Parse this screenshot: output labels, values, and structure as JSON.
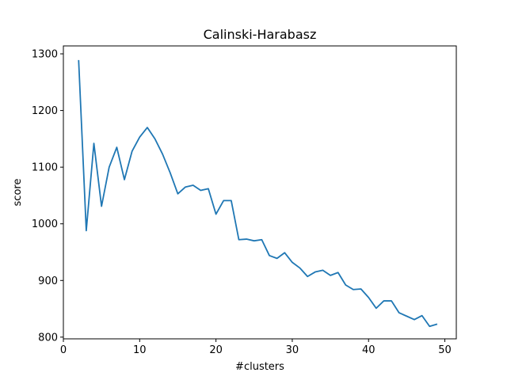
{
  "chart_data": {
    "type": "line",
    "title": "Calinski-Harabasz",
    "xlabel": "#clusters",
    "ylabel": "score",
    "xlim": [
      0,
      51.5
    ],
    "ylim": [
      797,
      1314
    ],
    "xticks": [
      0,
      10,
      20,
      30,
      40,
      50
    ],
    "yticks": [
      800,
      900,
      1000,
      1100,
      1200,
      1300
    ],
    "grid": false,
    "color": "#1f77b4",
    "series": [
      {
        "x": [
          2,
          3,
          4,
          5,
          6,
          7,
          8,
          9,
          10,
          11,
          12,
          13,
          14,
          15,
          16,
          17,
          18,
          19,
          20,
          21,
          22,
          23,
          24,
          25,
          26,
          27,
          28,
          29,
          30,
          31,
          32,
          33,
          34,
          35,
          36,
          37,
          38,
          39,
          40,
          41,
          42,
          43,
          44,
          45,
          46,
          47,
          48,
          49
        ],
        "values": [
          1289,
          988,
          1142,
          1031,
          1100,
          1135,
          1078,
          1128,
          1153,
          1170,
          1150,
          1123,
          1090,
          1053,
          1065,
          1068,
          1059,
          1062,
          1017,
          1041,
          1041,
          972,
          973,
          970,
          972,
          944,
          939,
          949,
          932,
          922,
          907,
          915,
          918,
          909,
          914,
          892,
          884,
          885,
          870,
          851,
          864,
          864,
          843,
          837,
          831,
          838,
          819,
          823
        ]
      }
    ]
  }
}
